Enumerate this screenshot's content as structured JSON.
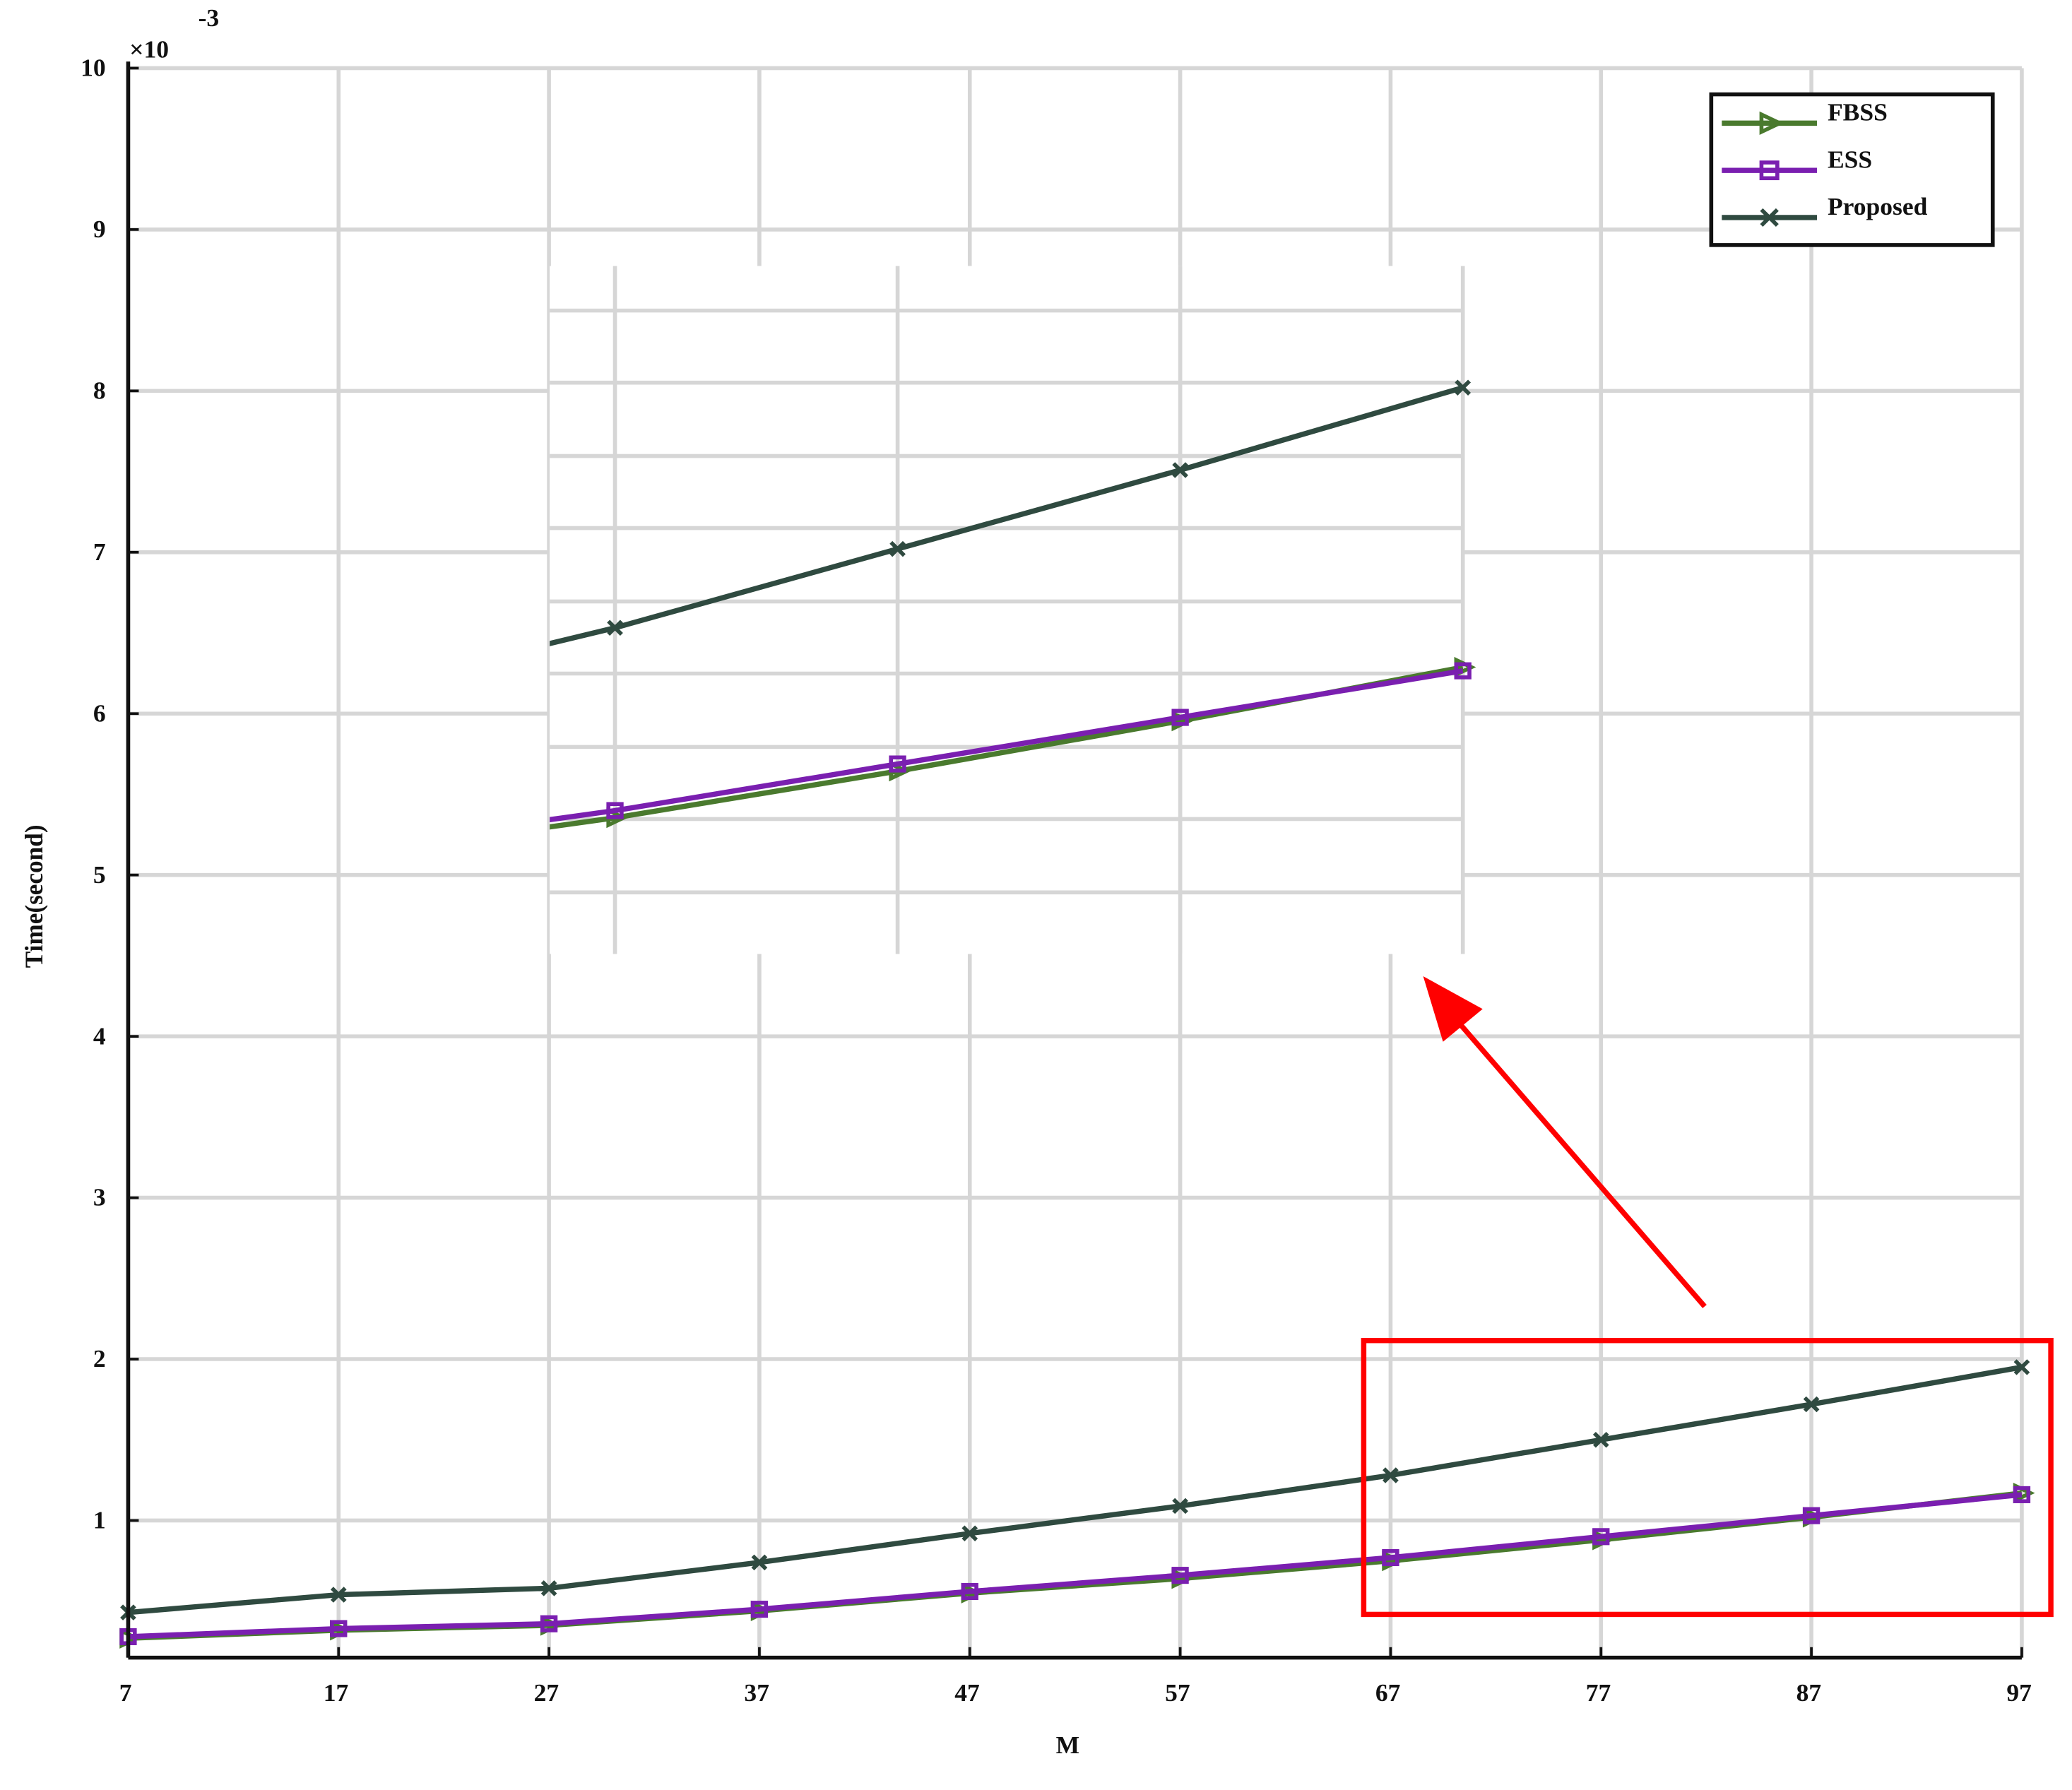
{
  "chart_data": {
    "type": "line",
    "xlabel": "M",
    "ylabel": "Time(second)",
    "scale_label": "×10",
    "scale_exponent": "-3",
    "x": [
      7,
      17,
      27,
      37,
      47,
      57,
      67,
      77,
      87,
      97
    ],
    "series": [
      {
        "name": "FBSS",
        "color": "#4a7a2e",
        "marker": "triangle-right",
        "values": [
          0.27,
          0.32,
          0.35,
          0.44,
          0.55,
          0.64,
          0.75,
          0.88,
          1.02,
          1.17
        ]
      },
      {
        "name": "ESS",
        "color": "#7a1fb0",
        "marker": "square",
        "values": [
          0.28,
          0.33,
          0.36,
          0.45,
          0.56,
          0.66,
          0.77,
          0.9,
          1.03,
          1.16
        ]
      },
      {
        "name": "Proposed",
        "color": "#2f4a40",
        "marker": "x",
        "values": [
          0.43,
          0.54,
          0.58,
          0.74,
          0.92,
          1.09,
          1.28,
          1.5,
          1.72,
          1.95
        ]
      }
    ],
    "xlim": [
      7,
      97
    ],
    "xticks": [
      7,
      17,
      27,
      37,
      47,
      57,
      67,
      77,
      87,
      97
    ],
    "ylim": [
      0.15,
      10
    ],
    "yticks": [
      1,
      2,
      3,
      4,
      5,
      6,
      7,
      8,
      9,
      10
    ],
    "grid": true,
    "legend": "upper right"
  }
}
